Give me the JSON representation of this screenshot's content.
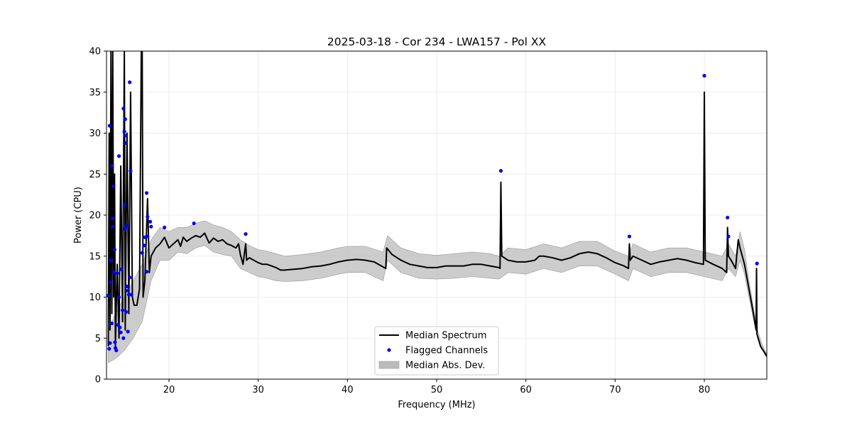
{
  "chart_data": {
    "type": "line",
    "title": "2025-03-18 - Cor 234 - LWA157 - Pol XX",
    "xlabel": "Frequency (MHz)",
    "ylabel": "Power (CPU)",
    "xlim": [
      13,
      87
    ],
    "ylim": [
      0,
      40
    ],
    "x_ticks": [
      20,
      30,
      40,
      50,
      60,
      70,
      80
    ],
    "y_ticks": [
      0,
      5,
      10,
      15,
      20,
      25,
      30,
      35,
      40
    ],
    "grid": true,
    "legend_position": "bottom-center",
    "legend": [
      {
        "label": "Median Spectrum",
        "kind": "line",
        "color": "#000000"
      },
      {
        "label": "Flagged Channels",
        "kind": "marker",
        "color": "#0000ff"
      },
      {
        "label": "Median Abs. Dev.",
        "kind": "patch",
        "color": "#bbbbbb"
      }
    ],
    "series": [
      {
        "name": "Median Spectrum",
        "color": "#000000",
        "points": [
          [
            13.2,
            4
          ],
          [
            13.3,
            30
          ],
          [
            13.4,
            6
          ],
          [
            13.5,
            40
          ],
          [
            13.6,
            8
          ],
          [
            13.7,
            40
          ],
          [
            13.8,
            10
          ],
          [
            13.9,
            25
          ],
          [
            14.0,
            4
          ],
          [
            14.2,
            14
          ],
          [
            14.4,
            5
          ],
          [
            14.6,
            26
          ],
          [
            14.8,
            7
          ],
          [
            15.0,
            40
          ],
          [
            15.1,
            6
          ],
          [
            15.3,
            30
          ],
          [
            15.5,
            8
          ],
          [
            15.7,
            35
          ],
          [
            15.9,
            10
          ],
          [
            16.1,
            9
          ],
          [
            16.4,
            9
          ],
          [
            16.7,
            11
          ],
          [
            16.9,
            40
          ],
          [
            17.0,
            40
          ],
          [
            17.1,
            10
          ],
          [
            17.3,
            12
          ],
          [
            17.6,
            22
          ],
          [
            17.8,
            13
          ],
          [
            18.0,
            15
          ],
          [
            18.5,
            16
          ],
          [
            19.0,
            16.5
          ],
          [
            19.5,
            17.3
          ],
          [
            20.0,
            16
          ],
          [
            20.5,
            16.5
          ],
          [
            21.0,
            17
          ],
          [
            21.3,
            16.2
          ],
          [
            21.6,
            17.3
          ],
          [
            22,
            16.8
          ],
          [
            22.5,
            17.2
          ],
          [
            23,
            17.5
          ],
          [
            23.5,
            17.3
          ],
          [
            24,
            17.8
          ],
          [
            24.5,
            16.6
          ],
          [
            25,
            17.2
          ],
          [
            25.5,
            16.8
          ],
          [
            26,
            17
          ],
          [
            26.5,
            16.5
          ],
          [
            27,
            16.3
          ],
          [
            27.5,
            16
          ],
          [
            27.8,
            16.5
          ],
          [
            28,
            15.2
          ],
          [
            28.3,
            14
          ],
          [
            28.6,
            16.5
          ],
          [
            28.7,
            14.5
          ],
          [
            29,
            14.8
          ],
          [
            29.5,
            14.5
          ],
          [
            30,
            14.2
          ],
          [
            30.5,
            14
          ],
          [
            31,
            14
          ],
          [
            31.5,
            13.8
          ],
          [
            32,
            13.6
          ],
          [
            32.5,
            13.3
          ],
          [
            33,
            13.3
          ],
          [
            34,
            13.4
          ],
          [
            35,
            13.5
          ],
          [
            36,
            13.7
          ],
          [
            37,
            13.8
          ],
          [
            38,
            14
          ],
          [
            39,
            14.3
          ],
          [
            40,
            14.5
          ],
          [
            41,
            14.6
          ],
          [
            42,
            14.5
          ],
          [
            43,
            14.3
          ],
          [
            44.3,
            13.5
          ],
          [
            44.4,
            16
          ],
          [
            45,
            15.2
          ],
          [
            46,
            14.5
          ],
          [
            47,
            14
          ],
          [
            48,
            13.8
          ],
          [
            49,
            13.6
          ],
          [
            50,
            13.6
          ],
          [
            51,
            13.8
          ],
          [
            52,
            13.8
          ],
          [
            53,
            13.8
          ],
          [
            54,
            14
          ],
          [
            55,
            14
          ],
          [
            56,
            13.8
          ],
          [
            57,
            13.6
          ],
          [
            57.1,
            13.5
          ],
          [
            57.2,
            24
          ],
          [
            57.3,
            15
          ],
          [
            58,
            14.5
          ],
          [
            59,
            14.3
          ],
          [
            60,
            14.3
          ],
          [
            61,
            14.5
          ],
          [
            61.5,
            15
          ],
          [
            62,
            15
          ],
          [
            63,
            14.8
          ],
          [
            64,
            14.5
          ],
          [
            65,
            14.8
          ],
          [
            66,
            15.3
          ],
          [
            67,
            15.5
          ],
          [
            68,
            15.3
          ],
          [
            69,
            14.8
          ],
          [
            70,
            14.2
          ],
          [
            71,
            13.8
          ],
          [
            71.5,
            13.5
          ],
          [
            71.6,
            16.5
          ],
          [
            71.7,
            14.5
          ],
          [
            72,
            15
          ],
          [
            73,
            14.5
          ],
          [
            74,
            14
          ],
          [
            75,
            14.3
          ],
          [
            76,
            14.5
          ],
          [
            77,
            14.7
          ],
          [
            78,
            14.5
          ],
          [
            79,
            14.2
          ],
          [
            79.9,
            14
          ],
          [
            80,
            35
          ],
          [
            80.1,
            14.5
          ],
          [
            81,
            14
          ],
          [
            82,
            13.5
          ],
          [
            82.5,
            13
          ],
          [
            82.6,
            18.5
          ],
          [
            82.7,
            15
          ],
          [
            83,
            14.5
          ],
          [
            83.5,
            13.5
          ],
          [
            83.8,
            17
          ],
          [
            84,
            16
          ],
          [
            84.5,
            14
          ],
          [
            85,
            11
          ],
          [
            85.5,
            8
          ],
          [
            85.8,
            6
          ],
          [
            85.85,
            13.5
          ],
          [
            85.9,
            5.5
          ],
          [
            86.3,
            4
          ],
          [
            87,
            2.8
          ]
        ]
      },
      {
        "name": "Median Abs. Dev.",
        "color": "#bbbbbb",
        "band": [
          [
            13.2,
            2,
            6
          ],
          [
            14,
            2.5,
            8
          ],
          [
            15,
            3.5,
            10
          ],
          [
            16,
            5,
            12
          ],
          [
            17,
            7,
            14
          ],
          [
            18,
            12,
            17
          ],
          [
            19,
            14.5,
            18.5
          ],
          [
            20,
            14.5,
            18
          ],
          [
            21,
            15.5,
            18.5
          ],
          [
            22,
            15.3,
            18.5
          ],
          [
            23,
            16,
            19
          ],
          [
            24,
            16.3,
            19.3
          ],
          [
            25,
            15.5,
            18.8
          ],
          [
            26,
            15.2,
            18.5
          ],
          [
            27,
            15,
            18
          ],
          [
            28,
            13.5,
            17
          ],
          [
            29,
            13,
            16.3
          ],
          [
            30,
            12.5,
            15.8
          ],
          [
            31,
            12.3,
            15.6
          ],
          [
            32,
            12,
            15.3
          ],
          [
            33,
            11.9,
            15
          ],
          [
            35,
            12,
            15.2
          ],
          [
            37,
            12.3,
            15.5
          ],
          [
            39,
            12.8,
            16
          ],
          [
            40,
            13,
            16.2
          ],
          [
            42,
            13,
            16.2
          ],
          [
            44,
            12,
            15.5
          ],
          [
            44.5,
            14.5,
            17.5
          ],
          [
            46,
            13,
            16
          ],
          [
            48,
            12.3,
            15.3
          ],
          [
            50,
            12.2,
            15.1
          ],
          [
            52,
            12.3,
            15.3
          ],
          [
            54,
            12.5,
            15.5
          ],
          [
            56,
            12.3,
            15.3
          ],
          [
            57,
            12.2,
            15
          ],
          [
            58,
            13,
            16
          ],
          [
            60,
            12.8,
            15.8
          ],
          [
            62,
            13.5,
            16.5
          ],
          [
            64,
            13,
            16
          ],
          [
            66,
            13.8,
            16.8
          ],
          [
            68,
            13.8,
            16.8
          ],
          [
            70,
            12.8,
            15.6
          ],
          [
            71.5,
            12,
            15
          ],
          [
            72,
            13.5,
            16.5
          ],
          [
            74,
            12.5,
            15.5
          ],
          [
            76,
            13,
            16
          ],
          [
            78,
            13,
            16
          ],
          [
            80,
            12.5,
            15.5
          ],
          [
            82,
            12,
            15
          ],
          [
            82.7,
            13.5,
            16.5
          ],
          [
            83.5,
            12.5,
            15
          ],
          [
            84,
            14.5,
            18
          ],
          [
            84.5,
            12.8,
            15.8
          ],
          [
            85,
            10,
            12
          ],
          [
            85.5,
            7.3,
            8.8
          ],
          [
            86,
            4.8,
            5.8
          ],
          [
            86.5,
            3.6,
            4.2
          ],
          [
            87,
            2.6,
            3
          ]
        ]
      },
      {
        "name": "Flagged Channels",
        "color": "#0000ff",
        "points": [
          [
            13.2,
            10.2
          ],
          [
            13.3,
            3.7
          ],
          [
            13.35,
            30.9
          ],
          [
            13.4,
            4.4
          ],
          [
            13.5,
            14.5
          ],
          [
            13.5,
            11.8
          ],
          [
            13.6,
            26
          ],
          [
            13.6,
            6.8
          ],
          [
            13.7,
            19.6
          ],
          [
            13.7,
            18.6
          ],
          [
            13.8,
            23.5
          ],
          [
            13.8,
            13
          ],
          [
            13.9,
            15.8
          ],
          [
            13.95,
            4.5
          ],
          [
            14.0,
            3.8
          ],
          [
            14.1,
            3.5
          ],
          [
            14.2,
            12.9
          ],
          [
            14.3,
            6.6
          ],
          [
            14.4,
            27.2
          ],
          [
            14.4,
            10
          ],
          [
            14.5,
            6.3
          ],
          [
            14.6,
            5.7
          ],
          [
            14.7,
            13.4
          ],
          [
            14.8,
            8.4
          ],
          [
            14.9,
            33
          ],
          [
            14.9,
            5
          ],
          [
            15.0,
            30.2
          ],
          [
            15.0,
            21.2
          ],
          [
            15.1,
            31.7
          ],
          [
            15.1,
            29.7
          ],
          [
            15.1,
            18.3
          ],
          [
            15.2,
            28.8
          ],
          [
            15.2,
            8.2
          ],
          [
            15.3,
            18.7
          ],
          [
            15.3,
            11.3
          ],
          [
            15.4,
            10.8
          ],
          [
            15.4,
            5.8
          ],
          [
            15.5,
            10.3
          ],
          [
            15.6,
            36.2
          ],
          [
            15.6,
            12.4
          ],
          [
            15.7,
            25.4
          ],
          [
            15.8,
            10.3
          ],
          [
            17.0,
            15.4
          ],
          [
            17.2,
            16.3
          ],
          [
            17.3,
            17.3
          ],
          [
            17.5,
            22.7
          ],
          [
            17.6,
            19.8
          ],
          [
            17.6,
            17.4
          ],
          [
            17.5,
            13.1
          ],
          [
            17.9,
            19.2
          ],
          [
            18.0,
            18.6
          ],
          [
            19.5,
            18.5
          ],
          [
            22.8,
            19
          ],
          [
            28.6,
            17.7
          ],
          [
            57.2,
            25.4
          ],
          [
            71.6,
            17.4
          ],
          [
            80.0,
            37
          ],
          [
            82.6,
            19.7
          ],
          [
            82.7,
            17.4
          ],
          [
            85.9,
            14.1
          ]
        ]
      }
    ]
  }
}
